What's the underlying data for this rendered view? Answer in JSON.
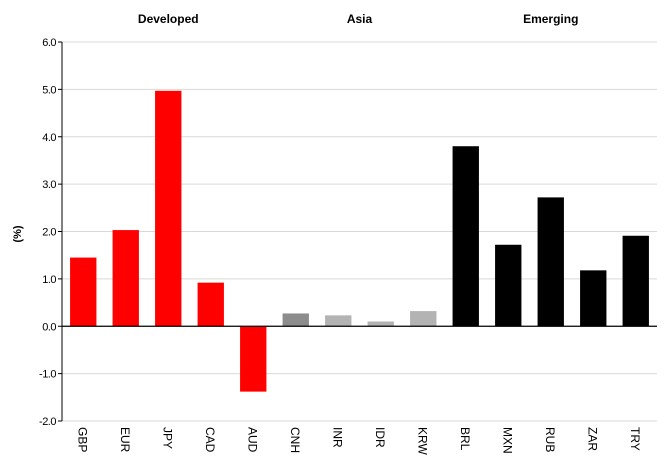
{
  "chart_data": {
    "type": "bar",
    "ylabel": "(%)",
    "ylim": [
      -2.0,
      6.0
    ],
    "yticks": [
      6.0,
      5.0,
      4.0,
      3.0,
      2.0,
      1.0,
      0.0,
      -1.0,
      -2.0
    ],
    "ytick_labels": [
      "6.0",
      "5.0",
      "4.0",
      "3.0",
      "2.0",
      "1.0",
      "0.0",
      "-1.0",
      "-2.0"
    ],
    "grid": true,
    "groups": [
      {
        "label": "Developed",
        "start": 0,
        "end": 4,
        "color": "#ff0000"
      },
      {
        "label": "Asia",
        "start": 5,
        "end": 8,
        "color": "#a6a6a6"
      },
      {
        "label": "Emerging",
        "start": 9,
        "end": 13,
        "color": "#000000"
      }
    ],
    "categories": [
      "GBP",
      "EUR",
      "JPY",
      "CAD",
      "AUD",
      "CNH",
      "INR",
      "IDR",
      "KRW",
      "BRL",
      "MXN",
      "RUB",
      "ZAR",
      "TRY"
    ],
    "values": [
      1.45,
      2.03,
      4.97,
      0.92,
      -1.38,
      0.27,
      0.23,
      0.1,
      0.32,
      3.8,
      1.72,
      2.72,
      1.18,
      1.91
    ],
    "colors": [
      "#ff0000",
      "#ff0000",
      "#ff0000",
      "#ff0000",
      "#ff0000",
      "#8c8c8c",
      "#b3b3b3",
      "#b3b3b3",
      "#b3b3b3",
      "#000000",
      "#000000",
      "#000000",
      "#000000",
      "#000000"
    ]
  }
}
